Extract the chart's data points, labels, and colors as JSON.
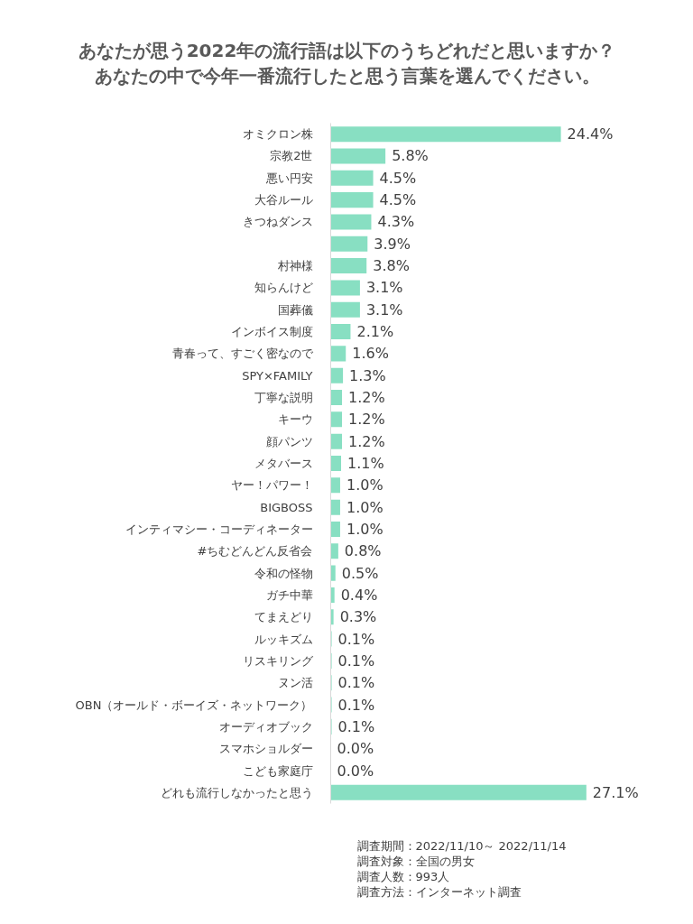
{
  "chart_data": {
    "type": "bar",
    "orientation": "horizontal",
    "title": "あなたが思う2022年の流行語は以下のうちどれだと思いますか？",
    "subtitle": "あなたの中で今年一番流行したと思う言葉を選んでください。",
    "categories": [
      "オミクロン株",
      "宗教2世",
      "悪い円安",
      "大谷ルール",
      "きつねダンス",
      null,
      "村神様",
      "知らんけど",
      "国葬儀",
      "インボイス制度",
      "青春って、すごく密なので",
      "SPY×FAMILY",
      "丁寧な説明",
      "キーウ",
      "顔パンツ",
      "メタバース",
      "ヤー！パワー！",
      "BIGBOSS",
      "インティマシー・コーディネーター",
      "#ちむどんどん反省会",
      "令和の怪物",
      "ガチ中華",
      "てまえどり",
      "ルッキズム",
      "リスキリング",
      "ヌン活",
      "OBN（オールド・ボーイズ・ネットワーク）",
      "オーディオブック",
      "スマホショルダー",
      "こども家庭庁",
      "どれも流行しなかったと思う"
    ],
    "values": [
      24.4,
      5.8,
      4.5,
      4.5,
      4.3,
      3.9,
      3.8,
      3.1,
      3.1,
      2.1,
      1.6,
      1.3,
      1.2,
      1.2,
      1.2,
      1.1,
      1.0,
      1.0,
      1.0,
      0.8,
      0.5,
      0.4,
      0.3,
      0.1,
      0.1,
      0.1,
      0.1,
      0.1,
      0.0,
      0.0,
      27.1
    ],
    "value_labels": [
      "24.4%",
      "5.8%",
      "4.5%",
      "4.5%",
      "4.3%",
      "3.9%",
      "3.8%",
      "3.1%",
      "3.1%",
      "2.1%",
      "1.6%",
      "1.3%",
      "1.2%",
      "1.2%",
      "1.2%",
      "1.1%",
      "1.0%",
      "1.0%",
      "1.0%",
      "0.8%",
      "0.5%",
      "0.4%",
      "0.3%",
      "0.1%",
      "0.1%",
      "0.1%",
      "0.1%",
      "0.1%",
      "0.0%",
      "0.0%",
      "27.1%"
    ],
    "color": "#88dfc2",
    "annotations": [
      "調査期間：2022/11/10～ 2022/11/14",
      "調査対象：全国の男女",
      "調査人数：993人",
      "調査方法：インターネット調査"
    ]
  }
}
